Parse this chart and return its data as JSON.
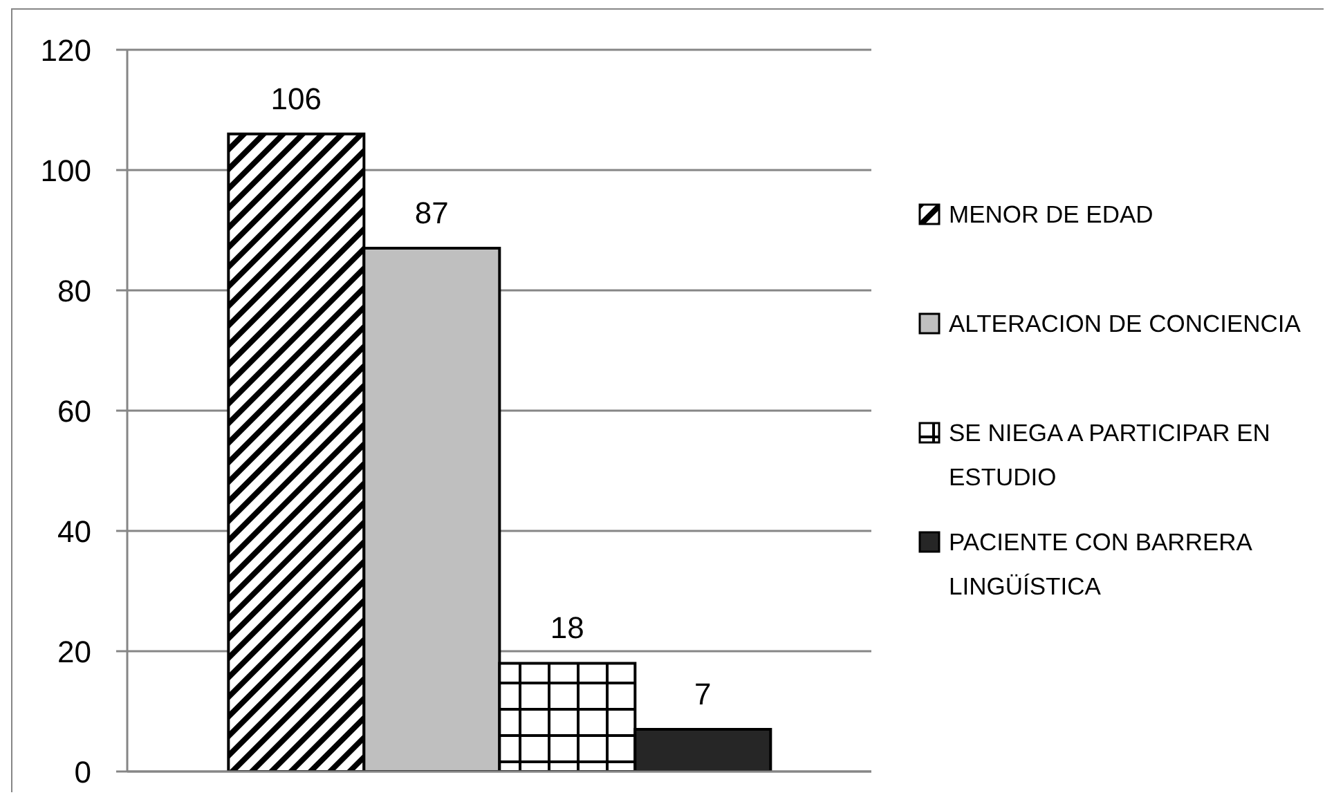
{
  "chart_data": {
    "type": "bar",
    "categories": [
      null
    ],
    "series": [
      {
        "name": "MENOR DE EDAD",
        "color": "#000000",
        "values": [
          106
        ]
      },
      {
        "name": "ALTERACION DE CONCIENCIA",
        "color": "#bfbfbf",
        "values": [
          87
        ]
      },
      {
        "name": "SE NIEGA A PARTICIPAR EN ESTUDIO",
        "color": "#000000",
        "values": [
          18
        ]
      },
      {
        "name": "PACIENTE CON BARRERA LINGÜÍSTICA",
        "color": "#262626",
        "values": [
          7
        ]
      }
    ],
    "ylim": [
      0,
      120
    ],
    "yticks": [
      0,
      20,
      40,
      60,
      80,
      100,
      120
    ],
    "grid": "y",
    "legend": "right",
    "data_labels": true
  }
}
